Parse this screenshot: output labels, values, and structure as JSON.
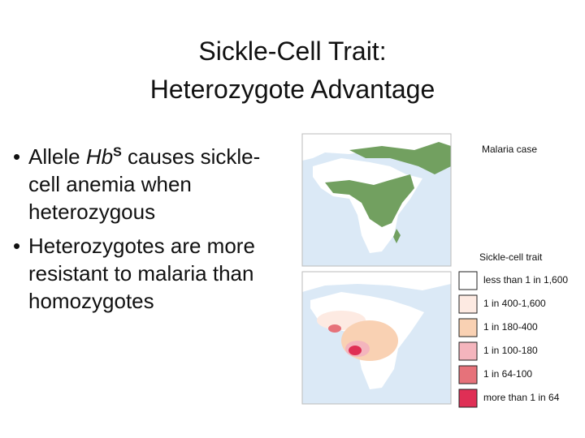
{
  "title": [
    "Sickle-Cell Trait:",
    "Heterozygote Advantage"
  ],
  "bullets": [
    {
      "parts": [
        "Allele ",
        "Hb",
        "S",
        " causes sickle-cell anemia when heterozygous"
      ]
    },
    {
      "parts": [
        "Heterozygotes are more resistant to malaria than homozygotes"
      ]
    }
  ],
  "maps": {
    "top_label": "Malaria case",
    "bottom_label": "Sickle-cell trait"
  },
  "legend": [
    {
      "label": "less than 1 in 1,600",
      "color": "#ffffff"
    },
    {
      "label": "1 in 400-1,600",
      "color": "#fdeae2"
    },
    {
      "label": "1 in 180-400",
      "color": "#f9d1b3"
    },
    {
      "label": "1 in 100-180",
      "color": "#f4b5bd"
    },
    {
      "label": "1 in 64-100",
      "color": "#e6727a"
    },
    {
      "label": "more than 1 in 64",
      "color": "#df2f55"
    }
  ]
}
